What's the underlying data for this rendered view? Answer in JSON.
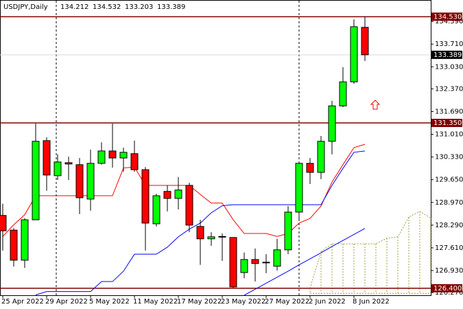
{
  "chart_data": {
    "type": "candlestick",
    "title": "USDJPY,Daily",
    "categories": [
      "25 Apr 2022",
      null,
      null,
      null,
      "29 Apr 2022",
      null,
      null,
      null,
      "5 May 2022",
      null,
      null,
      null,
      "11 May 2022",
      null,
      null,
      null,
      "17 May 2022",
      null,
      null,
      null,
      "23 May 2022",
      null,
      null,
      null,
      "27 May 2022",
      null,
      null,
      null,
      "2 Jun 2022",
      null,
      null,
      null,
      "8 Jun 2022",
      null,
      null,
      null,
      null,
      null,
      null,
      null
    ],
    "open": [
      128.58,
      128.14,
      127.24,
      128.45,
      130.82,
      129.77,
      130.16,
      130.1,
      129.07,
      130.14,
      130.51,
      130.3,
      130.43,
      129.95,
      128.33,
      129.3,
      129.09,
      129.48,
      128.25,
      127.88,
      127.93,
      127.92,
      126.87,
      127.26,
      127.18,
      127.06,
      127.55,
      128.68,
      130.14,
      129.87,
      130.8,
      131.86,
      132.58,
      134.212,
      null,
      null,
      null,
      null,
      null,
      null
    ],
    "high": [
      128.93,
      128.2,
      128.5,
      131.33,
      130.92,
      130.41,
      130.34,
      130.3,
      130.55,
      130.77,
      131.33,
      130.61,
      130.82,
      130.03,
      129.23,
      129.48,
      129.73,
      129.56,
      128.45,
      128.08,
      128.04,
      127.92,
      127.47,
      127.59,
      127.42,
      127.88,
      128.86,
      130.2,
      130.3,
      130.96,
      132.01,
      133.02,
      134.45,
      134.532,
      null,
      null,
      null,
      null,
      null,
      null
    ],
    "low": [
      127.53,
      127.05,
      127.01,
      128.45,
      129.32,
      129.64,
      129.64,
      128.62,
      128.72,
      130.1,
      130.01,
      129.89,
      129.89,
      127.53,
      128.25,
      128.7,
      128.76,
      128.08,
      127.1,
      127.67,
      127.22,
      126.4,
      126.7,
      126.6,
      126.85,
      126.93,
      127.42,
      128.45,
      129.52,
      129.67,
      130.41,
      131.82,
      132.52,
      133.203,
      null,
      null,
      null,
      null,
      null,
      null
    ],
    "close": [
      128.12,
      127.24,
      128.45,
      130.8,
      129.79,
      130.18,
      130.12,
      129.11,
      130.14,
      130.51,
      130.3,
      130.47,
      129.95,
      128.35,
      129.17,
      129.09,
      129.34,
      128.29,
      127.88,
      127.94,
      127.95,
      126.44,
      127.26,
      127.14,
      127.18,
      127.55,
      128.68,
      130.14,
      129.87,
      130.8,
      131.86,
      132.58,
      134.23,
      133.389,
      null,
      null,
      null,
      null,
      null,
      null
    ],
    "up_color": "#00ff00",
    "down_color": "#ff0000",
    "overlays": [
      {
        "color": "#ff0000",
        "style": "solid",
        "values": [
          127.95,
          128.3,
          128.6,
          129.17,
          129.17,
          129.17,
          129.17,
          129.17,
          129.17,
          129.17,
          129.17,
          130.0,
          130.03,
          129.48,
          129.48,
          129.48,
          129.48,
          129.48,
          129.21,
          128.95,
          128.95,
          128.45,
          128.04,
          128.04,
          128.04,
          127.95,
          128.04,
          128.35,
          128.49,
          128.86,
          129.58,
          130.1,
          130.61,
          130.71,
          null,
          null,
          null,
          null,
          null,
          null
        ]
      },
      {
        "color": "#0000ff",
        "style": "solid",
        "values": [
          null,
          null,
          null,
          126.2,
          126.3,
          126.3,
          126.3,
          126.3,
          126.3,
          126.6,
          126.6,
          126.91,
          127.42,
          127.42,
          127.42,
          127.63,
          127.94,
          128.17,
          128.35,
          128.66,
          128.87,
          128.9,
          128.9,
          128.9,
          128.9,
          128.9,
          128.9,
          128.9,
          128.9,
          128.9,
          129.48,
          129.99,
          130.47,
          130.51,
          null,
          null,
          null,
          null,
          null,
          null
        ]
      },
      {
        "color": "#0000ff",
        "style": "solid",
        "values": [
          null,
          null,
          null,
          null,
          null,
          null,
          null,
          null,
          null,
          null,
          null,
          null,
          null,
          null,
          null,
          null,
          null,
          null,
          null,
          null,
          null,
          null,
          126.19,
          126.37,
          126.55,
          126.73,
          126.91,
          127.1,
          127.28,
          127.46,
          127.65,
          127.83,
          128.01,
          128.19,
          null,
          null,
          null,
          null,
          null,
          null
        ]
      },
      {
        "color": "#9a9a3c",
        "style": "dotted",
        "values": [
          null,
          null,
          null,
          null,
          null,
          null,
          null,
          null,
          null,
          null,
          null,
          null,
          null,
          null,
          null,
          null,
          null,
          null,
          null,
          null,
          null,
          null,
          null,
          null,
          null,
          null,
          null,
          null,
          126.4,
          127.5,
          127.73,
          127.73,
          127.73,
          127.73,
          127.73,
          127.9,
          127.94,
          128.53,
          128.7,
          128.5
        ]
      },
      {
        "color": "#9a9a3c",
        "style": "dotted",
        "values": [
          null,
          null,
          null,
          null,
          null,
          null,
          null,
          null,
          null,
          null,
          null,
          null,
          null,
          null,
          null,
          null,
          null,
          null,
          null,
          null,
          null,
          null,
          null,
          null,
          null,
          null,
          null,
          null,
          126.25,
          126.25,
          126.25,
          126.25,
          126.25,
          126.25,
          126.25,
          126.25,
          126.25,
          126.25,
          126.25,
          126.25
        ]
      }
    ],
    "hlines": [
      {
        "value": 134.53,
        "label": "134.530",
        "color": "#800000"
      },
      {
        "value": 131.35,
        "label": "131.350",
        "color": "#800000"
      },
      {
        "value": 126.4,
        "label": "126.400",
        "color": "#800000"
      }
    ],
    "bid": 133.389,
    "ylim": [
      126.19,
      135.03
    ],
    "yticks": [
      {
        "value": 134.39,
        "label": "134.390"
      },
      {
        "value": 133.71,
        "label": "133.710"
      },
      {
        "value": 133.03,
        "label": "133.030"
      },
      {
        "value": 132.37,
        "label": "132.370"
      },
      {
        "value": 131.69,
        "label": "131.690"
      },
      {
        "value": 131.01,
        "label": "131.010"
      },
      {
        "value": 130.33,
        "label": "130.330"
      },
      {
        "value": 129.65,
        "label": "129.650"
      },
      {
        "value": 128.97,
        "label": "128.970"
      },
      {
        "value": 128.29,
        "label": "128.290"
      },
      {
        "value": 127.61,
        "label": "127.610"
      },
      {
        "value": 126.93,
        "label": "126.930"
      },
      {
        "value": 126.27,
        "label": "126.270"
      }
    ]
  }
}
